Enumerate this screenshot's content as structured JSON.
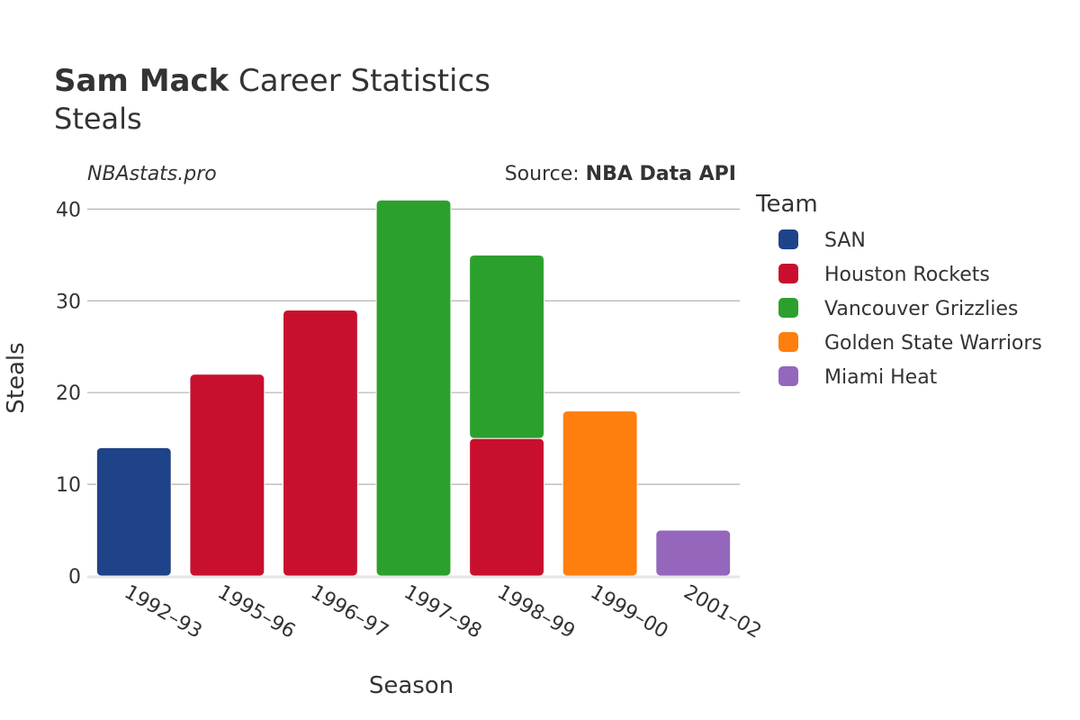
{
  "header": {
    "title_bold": "Sam Mack",
    "title_rest": " Career Statistics",
    "subtitle": "Steals",
    "watermark": "NBAstats.pro",
    "source_prefix": "Source: ",
    "source_name": "NBA Data API"
  },
  "legend": {
    "title": "Team"
  },
  "chart_data": {
    "type": "bar",
    "stacked": true,
    "xlabel": "Season",
    "ylabel": "Steals",
    "ylim": [
      0,
      42
    ],
    "yticks": [
      0,
      10,
      20,
      30,
      40
    ],
    "grid": true,
    "legend_position": "right",
    "categories": [
      "1992–93",
      "1995–96",
      "1996–97",
      "1997–98",
      "1998–99",
      "1999–00",
      "2001–02"
    ],
    "series": [
      {
        "name": "SAN",
        "color": "#1f4388",
        "values": [
          14,
          0,
          0,
          0,
          0,
          0,
          0
        ]
      },
      {
        "name": "Houston Rockets",
        "color": "#c8102e",
        "values": [
          0,
          22,
          29,
          0,
          15,
          0,
          0
        ]
      },
      {
        "name": "Vancouver Grizzlies",
        "color": "#2ca02c",
        "values": [
          0,
          0,
          0,
          41,
          20,
          0,
          0
        ]
      },
      {
        "name": "Golden State Warriors",
        "color": "#ff7f0e",
        "values": [
          0,
          0,
          0,
          0,
          0,
          18,
          0
        ]
      },
      {
        "name": "Miami Heat",
        "color": "#9467bd",
        "values": [
          0,
          0,
          0,
          0,
          0,
          0,
          5
        ]
      }
    ]
  }
}
